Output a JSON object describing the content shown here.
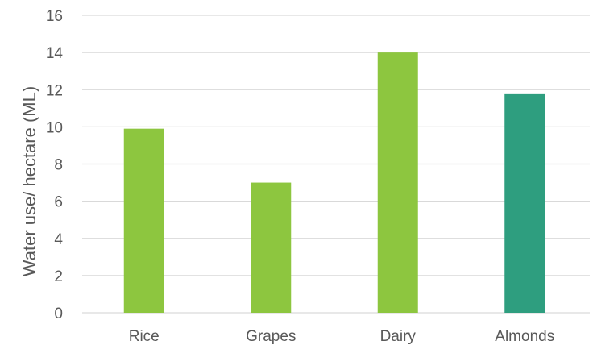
{
  "chart_data": {
    "type": "bar",
    "categories": [
      "Rice",
      "Grapes",
      "Dairy",
      "Almonds"
    ],
    "values": [
      9.9,
      7.0,
      14.0,
      11.8
    ],
    "bar_colors": [
      "#8dc63f",
      "#8dc63f",
      "#8dc63f",
      "#2e9e7f"
    ],
    "ylabel": "Water use/ hectare (ML)",
    "ylim": [
      0,
      16
    ],
    "yticks": [
      0,
      2,
      4,
      6,
      8,
      10,
      12,
      14,
      16
    ],
    "grid": true,
    "gridline_color": "#d9d9d9",
    "text_color": "#595959"
  }
}
